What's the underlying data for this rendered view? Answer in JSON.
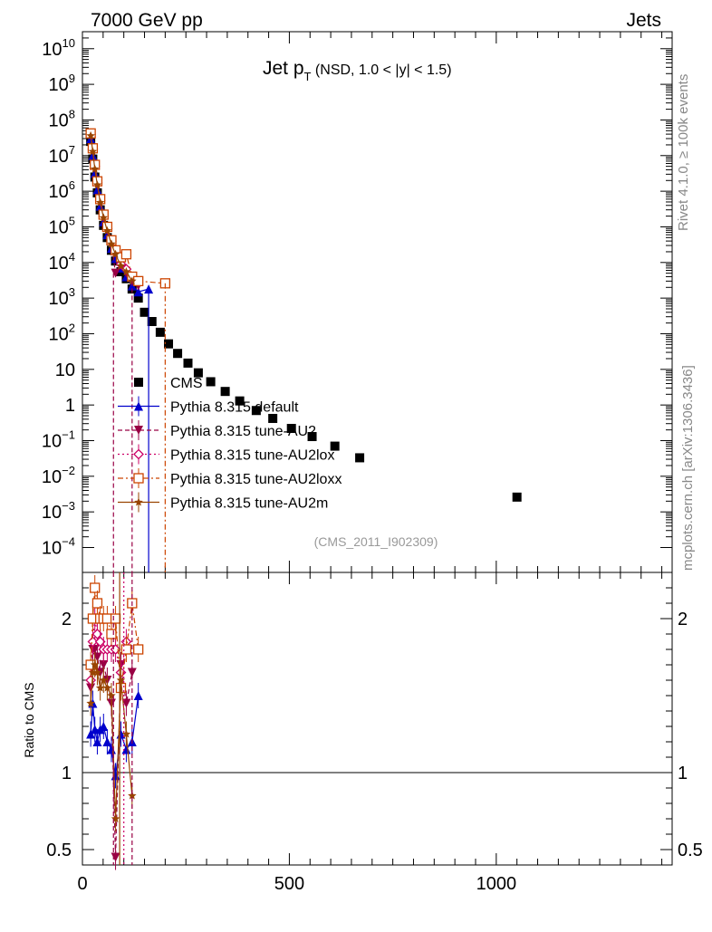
{
  "header": {
    "left": "7000 GeV pp",
    "right": "Jets"
  },
  "main_title": {
    "prefix": "Jet p",
    "subscript": "T",
    "suffix": " (NSD, 1.0 < |y| < 1.5)"
  },
  "side_labels": {
    "rivet": "Rivet 4.1.0, ≥ 100k events",
    "mcplots": "mcplots.cern.ch [arXiv:1306.3436]"
  },
  "analysis_id": "(CMS_2011_I902309)",
  "colors": {
    "cms": "#000000",
    "default": "#0000cc",
    "au2": "#990044",
    "au2lox": "#cc0066",
    "au2loxx": "#cc4400",
    "au2m": "#994400"
  },
  "chart_data": [
    {
      "type": "scatter",
      "panel": "main",
      "xlim": [
        0,
        1425
      ],
      "ylim": [
        2e-05,
        30000000000
      ],
      "y_scale": "log",
      "y_tick_labels": [
        {
          "mant": "10",
          "exp": "10"
        },
        {
          "mant": "10",
          "exp": "9"
        },
        {
          "mant": "10",
          "exp": "8"
        },
        {
          "mant": "10",
          "exp": "7"
        },
        {
          "mant": "10",
          "exp": "6"
        },
        {
          "mant": "10",
          "exp": "5"
        },
        {
          "mant": "10",
          "exp": "4"
        },
        {
          "mant": "10",
          "exp": "3"
        },
        {
          "mant": "10",
          "exp": "2"
        },
        {
          "mant": "10",
          "exp": ""
        },
        {
          "mant": "1",
          "exp": ""
        },
        {
          "mant": "10",
          "exp": "−1"
        },
        {
          "mant": "10",
          "exp": "−2"
        },
        {
          "mant": "10",
          "exp": "−3"
        },
        {
          "mant": "10",
          "exp": "−4"
        }
      ],
      "legend_position": "center-left",
      "series": [
        {
          "name": "CMS",
          "marker": "square",
          "x": [
            20,
            25,
            30,
            36,
            43,
            51,
            60,
            70,
            80,
            93,
            106,
            120,
            135,
            150,
            168,
            188,
            208,
            230,
            255,
            280,
            310,
            345,
            380,
            420,
            460,
            505,
            555,
            610,
            670,
            1050
          ],
          "y": [
            25000000,
            8000000,
            2500000,
            900000,
            300000,
            110000,
            50000,
            22000,
            11000,
            5500,
            3500,
            1800,
            1000,
            400,
            220,
            110,
            52,
            28,
            15,
            8,
            4.5,
            2.4,
            1.3,
            0.7,
            0.42,
            0.22,
            0.13,
            0.07,
            0.033,
            0.0026
          ]
        },
        {
          "name": "Pythia 8.315 default",
          "marker": "triangle-up",
          "x": [
            20,
            25,
            30,
            36,
            43,
            51,
            60,
            70,
            80,
            93,
            106,
            120,
            135,
            160
          ],
          "y": [
            30000000,
            10000000,
            3200000,
            1100000,
            380000,
            140000,
            60000,
            25000,
            13000,
            7000,
            4000,
            2200,
            1500,
            1800
          ]
        },
        {
          "name": "Pythia 8.315 tune-AU2",
          "marker": "triangle-down",
          "x": [
            20,
            25,
            30,
            36,
            43,
            51,
            60,
            70,
            80,
            93,
            106,
            120,
            135
          ],
          "y": [
            38000000,
            14000000,
            4500000,
            1600000,
            500000,
            190000,
            80000,
            32000,
            5000,
            9500,
            5000,
            3000,
            2200
          ]
        },
        {
          "name": "Pythia 8.315 tune-AU2lox",
          "marker": "diamond-open",
          "x": [
            20,
            25,
            30,
            36,
            43,
            51,
            60,
            70,
            80,
            93,
            106,
            120
          ],
          "y": [
            40000000,
            15000000,
            5000000,
            1700000,
            550000,
            200000,
            90000,
            40000,
            20000,
            9000,
            6500,
            3500
          ]
        },
        {
          "name": "Pythia 8.315 tune-AU2loxx",
          "marker": "square-open",
          "x": [
            20,
            25,
            30,
            36,
            43,
            51,
            60,
            70,
            80,
            93,
            106,
            120,
            135,
            200
          ],
          "y": [
            42000000,
            16000000,
            5500000,
            1900000,
            600000,
            220000,
            100000,
            42000,
            22000,
            14000,
            17000,
            4000,
            3000,
            2600
          ]
        },
        {
          "name": "Pythia 8.315 tune-AU2m",
          "marker": "star",
          "x": [
            20,
            25,
            30,
            36,
            43,
            51,
            60,
            70,
            80,
            93,
            106,
            120
          ],
          "y": [
            36000000,
            13000000,
            4200000,
            1500000,
            480000,
            180000,
            78000,
            33000,
            17000,
            8000,
            5500,
            3000
          ]
        }
      ]
    },
    {
      "type": "scatter",
      "panel": "ratio",
      "ylabel": "Ratio to CMS",
      "xlim": [
        0,
        1425
      ],
      "ylim": [
        0.4,
        2.3
      ],
      "x_tick_labels": [
        "0",
        "500",
        "1000"
      ],
      "y_tick_labels": [
        "0.5",
        "1",
        "2"
      ],
      "series": [
        {
          "name": "Pythia 8.315 default",
          "x": [
            20,
            25,
            30,
            36,
            43,
            51,
            60,
            70,
            80,
            93,
            106,
            120,
            135
          ],
          "y": [
            1.25,
            1.45,
            1.28,
            1.2,
            1.28,
            1.3,
            1.2,
            1.15,
            0.98,
            1.25,
            1.15,
            1.2,
            1.5
          ]
        },
        {
          "name": "Pythia 8.315 tune-AU2",
          "x": [
            20,
            25,
            30,
            36,
            43,
            51,
            60,
            70,
            80,
            93,
            106,
            120
          ],
          "y": [
            1.55,
            1.8,
            1.8,
            1.75,
            1.65,
            1.7,
            1.6,
            1.45,
            0.45,
            1.7,
            1.45,
            1.65
          ]
        },
        {
          "name": "Pythia 8.315 tune-AU2lox",
          "x": [
            20,
            25,
            30,
            36,
            43,
            51,
            60,
            70,
            80,
            93,
            106
          ],
          "y": [
            1.6,
            1.85,
            2.0,
            1.9,
            1.85,
            1.8,
            1.8,
            1.8,
            1.8,
            1.65,
            1.85
          ]
        },
        {
          "name": "Pythia 8.315 tune-AU2loxx",
          "x": [
            20,
            25,
            30,
            36,
            43,
            51,
            60,
            70,
            80,
            93,
            106,
            120,
            135
          ],
          "y": [
            1.7,
            2.0,
            2.2,
            2.1,
            2.0,
            2.0,
            2.0,
            1.9,
            2.0,
            1.55,
            1.8,
            2.1,
            1.8
          ]
        },
        {
          "name": "Pythia 8.315 tune-AU2m",
          "x": [
            20,
            25,
            30,
            36,
            43,
            51,
            60,
            70,
            80,
            93,
            106,
            120
          ],
          "y": [
            1.45,
            1.65,
            1.7,
            1.65,
            1.55,
            1.6,
            1.55,
            1.5,
            0.7,
            1.6,
            1.25,
            0.85
          ]
        }
      ]
    }
  ]
}
